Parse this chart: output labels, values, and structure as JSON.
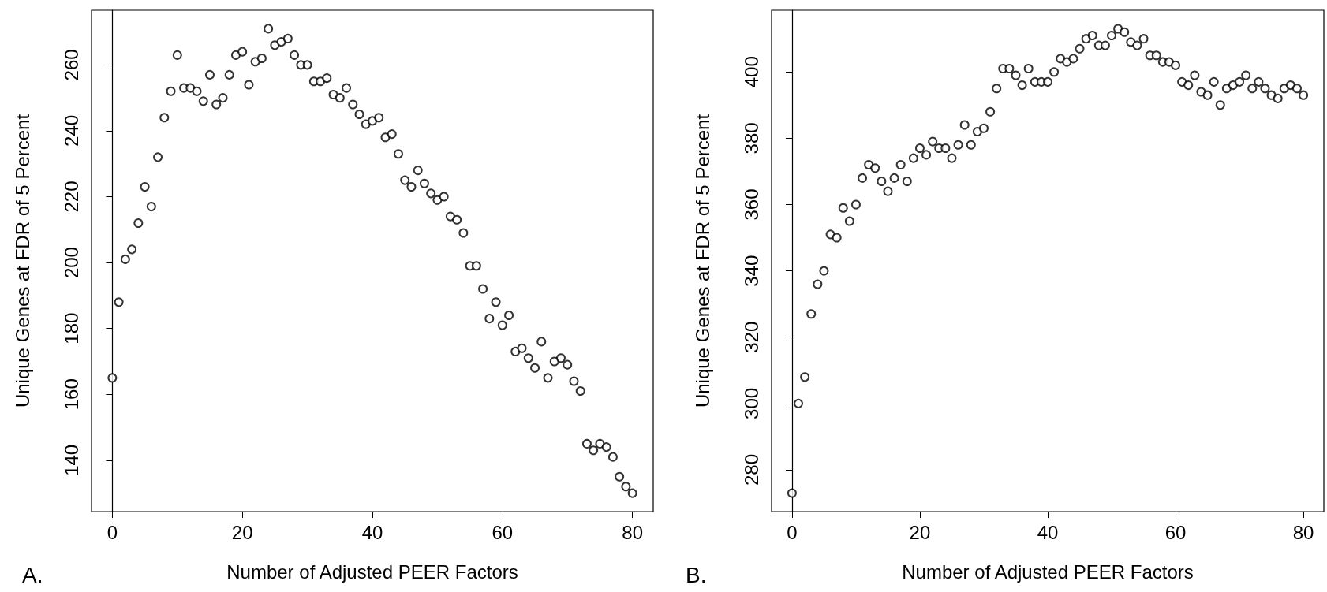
{
  "chart_data": [
    {
      "type": "scatter",
      "xlabel": "Number of Adjusted PEER Factors",
      "ylabel": "Unique Genes at FDR of 5 Percent",
      "annotations": [
        "A."
      ],
      "marker": "circle",
      "x": [
        0,
        1,
        2,
        3,
        4,
        5,
        6,
        7,
        8,
        9,
        10,
        11,
        12,
        13,
        14,
        15,
        16,
        17,
        18,
        19,
        20,
        21,
        22,
        23,
        24,
        25,
        26,
        27,
        28,
        29,
        30,
        31,
        32,
        33,
        34,
        35,
        36,
        37,
        38,
        39,
        40,
        41,
        42,
        43,
        44,
        45,
        46,
        47,
        48,
        49,
        50,
        51,
        52,
        53,
        54,
        55,
        56,
        57,
        58,
        59,
        60,
        61,
        62,
        63,
        64,
        65,
        66,
        67,
        68,
        69,
        70,
        71,
        72,
        73,
        74,
        75,
        76,
        77,
        78,
        79,
        80
      ],
      "series": [
        {
          "color": "#000000",
          "values": [
            165,
            188,
            201,
            204,
            212,
            223,
            217,
            232,
            244,
            252,
            263,
            253,
            253,
            252,
            249,
            257,
            248,
            250,
            257,
            263,
            264,
            254,
            261,
            262,
            271,
            266,
            267,
            268,
            263,
            260,
            260,
            255,
            255,
            256,
            251,
            250,
            253,
            248,
            245,
            242,
            243,
            244,
            238,
            239,
            233,
            225,
            223,
            228,
            224,
            221,
            219,
            220,
            214,
            213,
            209,
            199,
            199,
            192,
            183,
            188,
            181,
            184,
            173,
            174,
            171,
            168,
            176,
            165,
            170,
            171,
            169,
            164,
            161,
            145,
            143,
            145,
            144,
            141,
            135,
            132,
            130
          ]
        }
      ],
      "xlim": [
        -3.2,
        83.2
      ],
      "xticks": [
        0,
        20,
        40,
        60,
        80
      ],
      "ylim": [
        124.4,
        276.6
      ],
      "yticks": [
        140,
        160,
        180,
        200,
        220,
        240,
        260
      ]
    },
    {
      "type": "scatter",
      "xlabel": "Number of Adjusted PEER Factors",
      "ylabel": "Unique Genes at FDR of 5 Percent",
      "annotations": [
        "B."
      ],
      "marker": "circle",
      "x": [
        0,
        1,
        2,
        3,
        4,
        5,
        6,
        7,
        8,
        9,
        10,
        11,
        12,
        13,
        14,
        15,
        16,
        17,
        18,
        19,
        20,
        21,
        22,
        23,
        24,
        25,
        26,
        27,
        28,
        29,
        30,
        31,
        32,
        33,
        34,
        35,
        36,
        37,
        38,
        39,
        40,
        41,
        42,
        43,
        44,
        45,
        46,
        47,
        48,
        49,
        50,
        51,
        52,
        53,
        54,
        55,
        56,
        57,
        58,
        59,
        60,
        61,
        62,
        63,
        64,
        65,
        66,
        67,
        68,
        69,
        70,
        71,
        72,
        73,
        74,
        75,
        76,
        77,
        78,
        79,
        80
      ],
      "series": [
        {
          "color": "#000000",
          "values": [
            273,
            300,
            308,
            327,
            336,
            340,
            351,
            350,
            359,
            355,
            360,
            368,
            372,
            371,
            367,
            364,
            368,
            372,
            367,
            374,
            377,
            375,
            379,
            377,
            377,
            374,
            378,
            384,
            378,
            382,
            383,
            388,
            395,
            401,
            401,
            399,
            396,
            401,
            397,
            397,
            397,
            400,
            404,
            403,
            404,
            407,
            410,
            411,
            408,
            408,
            411,
            413,
            412,
            409,
            408,
            410,
            405,
            405,
            403,
            403,
            402,
            397,
            396,
            399,
            394,
            393,
            397,
            390,
            395,
            396,
            397,
            399,
            395,
            397,
            395,
            393,
            392,
            395,
            396,
            395,
            393
          ]
        }
      ],
      "xlim": [
        -3.2,
        83.2
      ],
      "xticks": [
        0,
        20,
        40,
        60,
        80
      ],
      "ylim": [
        267.4,
        418.6
      ],
      "yticks": [
        280,
        300,
        320,
        340,
        360,
        380,
        400
      ]
    }
  ]
}
